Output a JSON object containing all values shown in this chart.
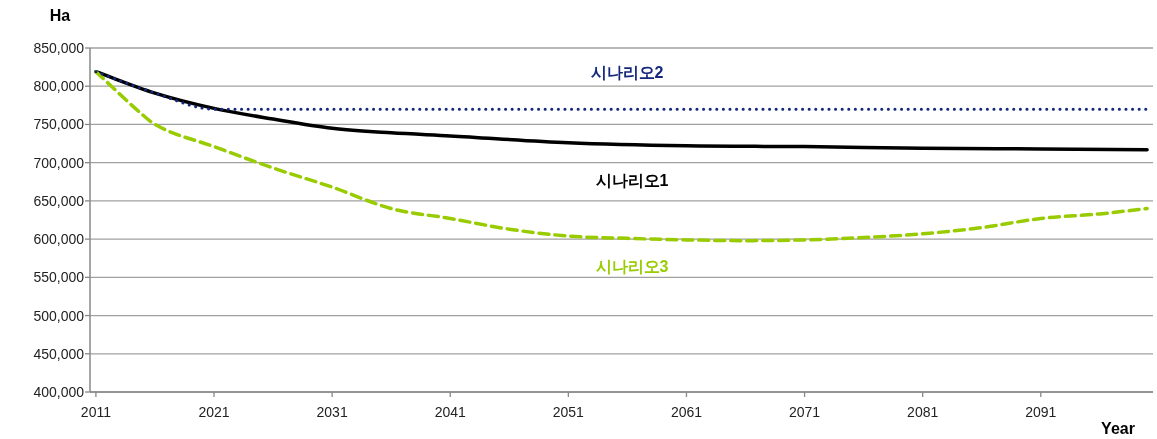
{
  "chart_data": {
    "type": "line",
    "xlabel": "Year",
    "ylabel": "Ha",
    "xlim": [
      2010.5,
      2100.5
    ],
    "xticks": [
      2011,
      2021,
      2031,
      2041,
      2051,
      2061,
      2071,
      2081,
      2091
    ],
    "ylim": [
      400000,
      850000
    ],
    "yticks": [
      {
        "value": 400000,
        "label": "400,000"
      },
      {
        "value": 450000,
        "label": "450,000"
      },
      {
        "value": 500000,
        "label": "500,000"
      },
      {
        "value": 550000,
        "label": "550,000"
      },
      {
        "value": 600000,
        "label": "600,000"
      },
      {
        "value": 650000,
        "label": "650,000"
      },
      {
        "value": 700000,
        "label": "700,000"
      },
      {
        "value": 750000,
        "label": "750,000"
      },
      {
        "value": 800000,
        "label": "800,000"
      },
      {
        "value": 850000,
        "label": "850,000"
      }
    ],
    "grid": "y",
    "series": [
      {
        "name": "시나리오1",
        "color": "#000000",
        "line_style": "solid",
        "x": [
          2011,
          2016,
          2021,
          2026,
          2031,
          2036,
          2041,
          2051,
          2061,
          2071,
          2081,
          2091,
          2100
        ],
        "values": [
          819000,
          791000,
          771000,
          757000,
          745000,
          739000,
          735000,
          726000,
          722000,
          721000,
          719000,
          718000,
          717000
        ]
      },
      {
        "name": "시나리오2",
        "color": "#14287a",
        "line_style": "dotted",
        "x": [
          2011,
          2016,
          2021,
          2100
        ],
        "values": [
          819000,
          791000,
          770000,
          770000
        ]
      },
      {
        "name": "시나리오3",
        "color": "#99cc00",
        "line_style": "dashed",
        "x": [
          2011,
          2015,
          2016,
          2021,
          2026,
          2031,
          2036,
          2041,
          2046,
          2051,
          2056,
          2061,
          2066,
          2071,
          2076,
          2081,
          2086,
          2091,
          2096,
          2100
        ],
        "values": [
          819000,
          762000,
          750000,
          721000,
          693000,
          668000,
          640000,
          627000,
          613000,
          604000,
          601000,
          599000,
          598000,
          599000,
          602000,
          607000,
          615000,
          627000,
          633000,
          640000
        ]
      }
    ]
  }
}
